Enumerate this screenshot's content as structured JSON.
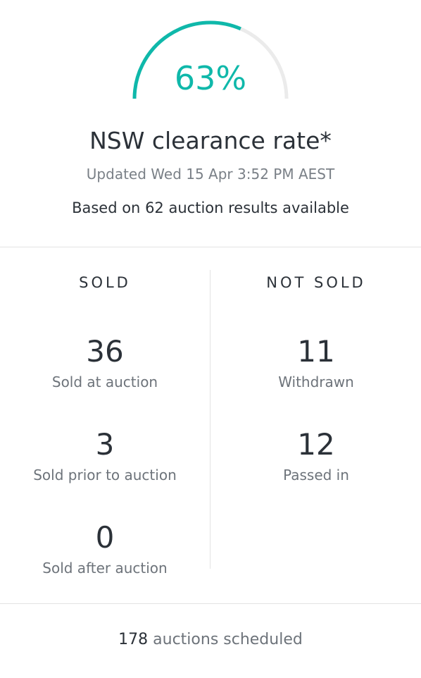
{
  "gauge": {
    "value": 63,
    "value_label": "63%",
    "range": [
      0,
      100
    ]
  },
  "title": "NSW clearance rate*",
  "updated": "Updated Wed 15 Apr 3:52 PM AEST",
  "based_on": {
    "prefix": "Based on",
    "count": 62,
    "suffix": "auction results available"
  },
  "sold": {
    "heading": "SOLD",
    "items": [
      {
        "value": 36,
        "label": "Sold at auction"
      },
      {
        "value": 3,
        "label": "Sold prior to auction"
      },
      {
        "value": 0,
        "label": "Sold after auction"
      }
    ]
  },
  "not_sold": {
    "heading": "NOT SOLD",
    "items": [
      {
        "value": 11,
        "label": "Withdrawn"
      },
      {
        "value": 12,
        "label": "Passed in"
      }
    ]
  },
  "footer": {
    "count": 178,
    "suffix": "auctions scheduled"
  }
}
